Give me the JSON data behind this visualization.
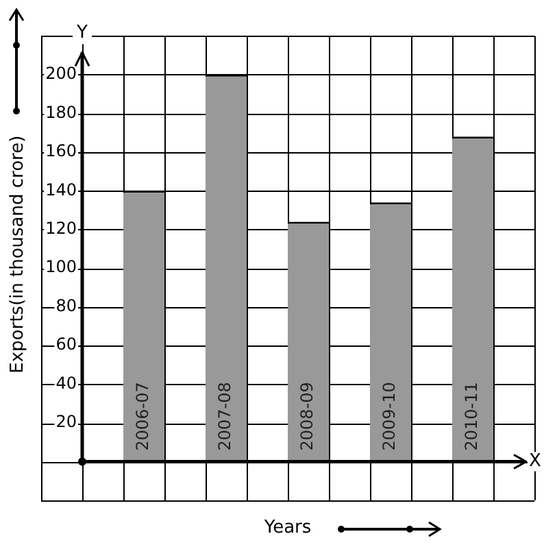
{
  "chart_data": {
    "type": "bar",
    "xlabel": "Years",
    "ylabel": "Exports(in thousand crore)",
    "categories": [
      "2006-07",
      "2007-08",
      "2008-09",
      "2009-10",
      "2010-11"
    ],
    "values": [
      140,
      200,
      124,
      134,
      168
    ],
    "color": "#999999",
    "ylim": [
      -20,
      220
    ],
    "yticks": [
      {
        "value": -20,
        "label": null
      },
      {
        "value": 0,
        "label": null
      },
      20,
      40,
      60,
      80,
      100,
      120,
      140,
      160,
      180,
      200,
      {
        "value": 220,
        "label": null
      }
    ],
    "grid": true,
    "legend": false,
    "annotations": [
      "X",
      "Y"
    ]
  }
}
